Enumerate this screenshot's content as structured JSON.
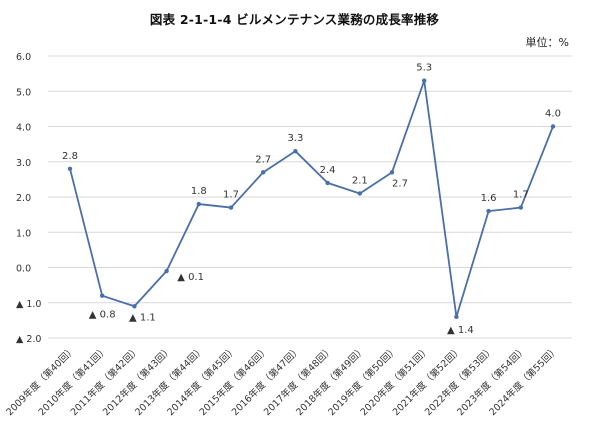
{
  "title": "図表 2-1-1-4  ビルメンテナンス業務の成長率推移",
  "unit_label": "単位：%",
  "colors": {
    "line": "#4a6fa8",
    "grid": "#d9d9d9",
    "text": "#333333"
  },
  "chart_data": {
    "type": "line",
    "title": "図表 2-1-1-4  ビルメンテナンス業務の成長率推移",
    "xlabel": "",
    "ylabel": "",
    "unit": "単位：%",
    "ylim": [
      -2.0,
      6.0
    ],
    "yticks": [
      6.0,
      5.0,
      4.0,
      3.0,
      2.0,
      1.0,
      0.0,
      -1.0,
      -2.0
    ],
    "ytick_labels": [
      "6.0",
      "5.0",
      "4.0",
      "3.0",
      "2.0",
      "1.0",
      "0.0",
      "▲ 1.0",
      "▲ 2.0"
    ],
    "grid": true,
    "categories": [
      "2009年度（第40回）",
      "2010年度（第41回）",
      "2011年度（第42回）",
      "2012年度（第43回）",
      "2013年度（第44回）",
      "2014年度（第45回）",
      "2015年度（第46回）",
      "2016年度（第47回）",
      "2017年度（第48回）",
      "2018年度（第49回）",
      "2019年度（第50回）",
      "2020年度（第51回）",
      "2021年度（第52回）",
      "2022年度（第53回）",
      "2023年度（第54回）",
      "2024年度（第55回）"
    ],
    "values": [
      2.8,
      -0.8,
      -1.1,
      -0.1,
      1.8,
      1.7,
      2.7,
      3.3,
      2.4,
      2.1,
      2.7,
      5.3,
      -1.4,
      1.6,
      1.7,
      4.0
    ],
    "data_labels": [
      "2.8",
      "▲ 0.8",
      "▲ 1.1",
      "▲ 0.1",
      "1.8",
      "1.7",
      "2.7",
      "3.3",
      "2.4",
      "2.1",
      "2.7",
      "5.3",
      "▲ 1.4",
      "1.6",
      "1.7",
      "4.0"
    ]
  }
}
